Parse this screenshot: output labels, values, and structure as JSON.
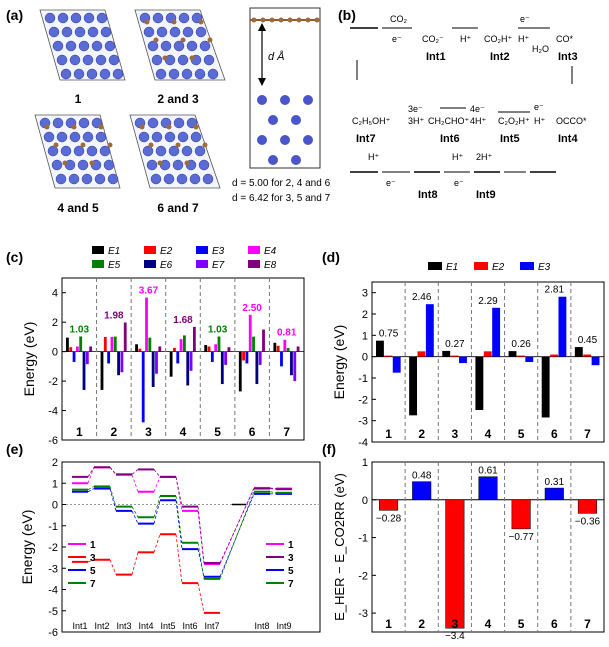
{
  "panel_labels": [
    "(a)",
    "(b)",
    "(c)",
    "(d)",
    "(e)",
    "(f)"
  ],
  "panel_a": {
    "captions": [
      "1",
      "2 and 3",
      "4 and 5",
      "6 and 7"
    ],
    "side_label": "d Å",
    "spacing_text_1": "d = 5.00 for 2, 4 and 6",
    "spacing_text_2": "d = 6.42 for 3, 5 and 7"
  },
  "panel_b": {
    "species": [
      "CO₂",
      "e⁻",
      "H⁺",
      "e⁻",
      "H⁺",
      "H₂O",
      "e⁻",
      "H⁺",
      "4e⁻",
      "4H⁺",
      "3e⁻",
      "3H⁺",
      "H⁺",
      "e⁻",
      "H⁺",
      "e⁻",
      "2H⁺"
    ],
    "chem_labels": [
      "CO₂⁻",
      "CO₂H⁺",
      "CO*",
      "OCCO*",
      "C₂O₂H⁺",
      "CH₂CHO⁺",
      "C₂H₅OH⁺"
    ],
    "intermediates": [
      "Int1",
      "Int2",
      "Int3",
      "Int4",
      "Int5",
      "Int6",
      "Int7",
      "Int8",
      "Int9"
    ]
  },
  "chart_data": [
    {
      "id": "c",
      "type": "bar",
      "ylabel": "Energy (eV)",
      "ylim": [
        -6,
        5
      ],
      "yticks": [
        "-6",
        "-4",
        "-2",
        "0",
        "2",
        "4"
      ],
      "categories": [
        "1",
        "2",
        "3",
        "4",
        "5",
        "6",
        "7"
      ],
      "legend": [
        "E1",
        "E2",
        "E3",
        "E4",
        "E5",
        "E6",
        "E7",
        "E8"
      ],
      "colors": [
        "#000000",
        "#ff0000",
        "#0000ff",
        "#ff00ff",
        "#008000",
        "#000080",
        "#8000ff",
        "#800080"
      ],
      "series": [
        {
          "name": "E1",
          "values": [
            0.95,
            -2.6,
            0.5,
            -1.7,
            0.45,
            -2.7,
            0.6
          ]
        },
        {
          "name": "E2",
          "values": [
            0.3,
            1.0,
            0.2,
            0.25,
            0.35,
            -0.6,
            0.4
          ]
        },
        {
          "name": "E3",
          "values": [
            -0.7,
            -0.8,
            -4.8,
            -0.8,
            -0.7,
            -0.8,
            -1.0
          ]
        },
        {
          "name": "E4",
          "values": [
            0.35,
            1.0,
            3.67,
            0.85,
            0.5,
            2.5,
            0.81
          ]
        },
        {
          "name": "E5",
          "values": [
            1.03,
            1.02,
            0.95,
            1.1,
            1.03,
            1.02,
            0.25
          ]
        },
        {
          "name": "E6",
          "values": [
            -2.6,
            -1.6,
            -2.4,
            -2.3,
            -2.2,
            -2.2,
            -1.6
          ]
        },
        {
          "name": "E7",
          "values": [
            -0.85,
            -1.4,
            -1.5,
            -1.3,
            -0.9,
            -0.9,
            -2.0
          ]
        },
        {
          "name": "E8",
          "values": [
            0.35,
            1.98,
            0.35,
            1.68,
            0.3,
            1.5,
            0.35
          ]
        }
      ],
      "annotations": [
        {
          "category": "1",
          "text": "1.03",
          "color": "#008000"
        },
        {
          "category": "2",
          "text": "1.98",
          "color": "#800080"
        },
        {
          "category": "3",
          "text": "3.67",
          "color": "#ff00ff"
        },
        {
          "category": "4",
          "text": "1.68",
          "color": "#800080"
        },
        {
          "category": "5",
          "text": "1.03",
          "color": "#008000"
        },
        {
          "category": "6",
          "text": "2.50",
          "color": "#ff00ff"
        },
        {
          "category": "7",
          "text": "0.81",
          "color": "#ff00ff"
        }
      ]
    },
    {
      "id": "d",
      "type": "bar",
      "ylabel": "Energy (eV)",
      "ylim": [
        -4,
        3.5
      ],
      "yticks": [
        "-4",
        "-3",
        "-2",
        "-1",
        "0",
        "1",
        "2",
        "3"
      ],
      "categories": [
        "1",
        "2",
        "3",
        "4",
        "5",
        "6",
        "7"
      ],
      "legend": [
        "E1",
        "E2",
        "E3"
      ],
      "colors": [
        "#000000",
        "#ff0000",
        "#0000ff"
      ],
      "series": [
        {
          "name": "E1",
          "values": [
            0.75,
            -2.75,
            0.27,
            -2.5,
            0.26,
            -2.85,
            0.45
          ]
        },
        {
          "name": "E2",
          "values": [
            0.05,
            0.25,
            0.05,
            0.25,
            0.05,
            0.1,
            0.1
          ]
        },
        {
          "name": "E3",
          "values": [
            -0.75,
            2.46,
            -0.3,
            2.29,
            -0.25,
            2.81,
            -0.4
          ]
        }
      ],
      "annotations": [
        "0.75",
        "2.46",
        "0.27",
        "2.29",
        "0.26",
        "2.81",
        "0.45"
      ]
    },
    {
      "id": "e",
      "type": "line",
      "ylabel": "Energy (eV)",
      "ylim": [
        -6,
        2
      ],
      "yticks": [
        "-6",
        "-5",
        "-4",
        "-3",
        "-2",
        "-1",
        "0",
        "1",
        "2"
      ],
      "categories": [
        "Int1",
        "Int2",
        "Int3",
        "Int4",
        "Int5",
        "Int6",
        "Int7",
        "Int8",
        "Int9"
      ],
      "series": [
        {
          "name": "1",
          "color": "#ff00ff",
          "values": [
            1.0,
            1.75,
            1.4,
            0.6,
            1.3,
            -0.3,
            -2.8,
            0.78,
            0.75
          ]
        },
        {
          "name": "3",
          "color": "#800080",
          "values": [
            1.3,
            1.75,
            1.42,
            1.65,
            1.3,
            -0.1,
            -2.75,
            0.75,
            0.72
          ]
        },
        {
          "name": "3",
          "color": "#ff0000",
          "values": [
            -2.7,
            -2.6,
            -3.3,
            -2.25,
            -1.4,
            -3.7,
            -5.1,
            null,
            null
          ]
        },
        {
          "name": "5",
          "color": "#0000ff",
          "values": [
            0.6,
            0.75,
            -0.3,
            -0.9,
            0.2,
            -2.1,
            -3.4,
            0.5,
            0.5
          ]
        },
        {
          "name": "7",
          "color": "#008000",
          "values": [
            0.7,
            0.85,
            -0.1,
            -0.6,
            0.4,
            -1.8,
            -3.5,
            0.6,
            0.55
          ]
        }
      ],
      "legend_left": [
        "1",
        "3",
        "5",
        "7"
      ],
      "legend_right": [
        "1",
        "3",
        "5",
        "7"
      ]
    },
    {
      "id": "f",
      "type": "bar",
      "ylabel": "E_HER − E_CO2RR (eV)",
      "ylim": [
        -3.5,
        1.0
      ],
      "yticks": [
        "-3",
        "-2",
        "-1",
        "0",
        "1"
      ],
      "categories": [
        "1",
        "2",
        "3",
        "4",
        "5",
        "6",
        "7"
      ],
      "values": [
        -0.28,
        0.48,
        -3.4,
        0.61,
        -0.77,
        0.31,
        -0.36
      ],
      "labels": [
        "−0.28",
        "0.48",
        "−3.4",
        "0.61",
        "−0.77",
        "0.31",
        "−0.36"
      ]
    }
  ]
}
